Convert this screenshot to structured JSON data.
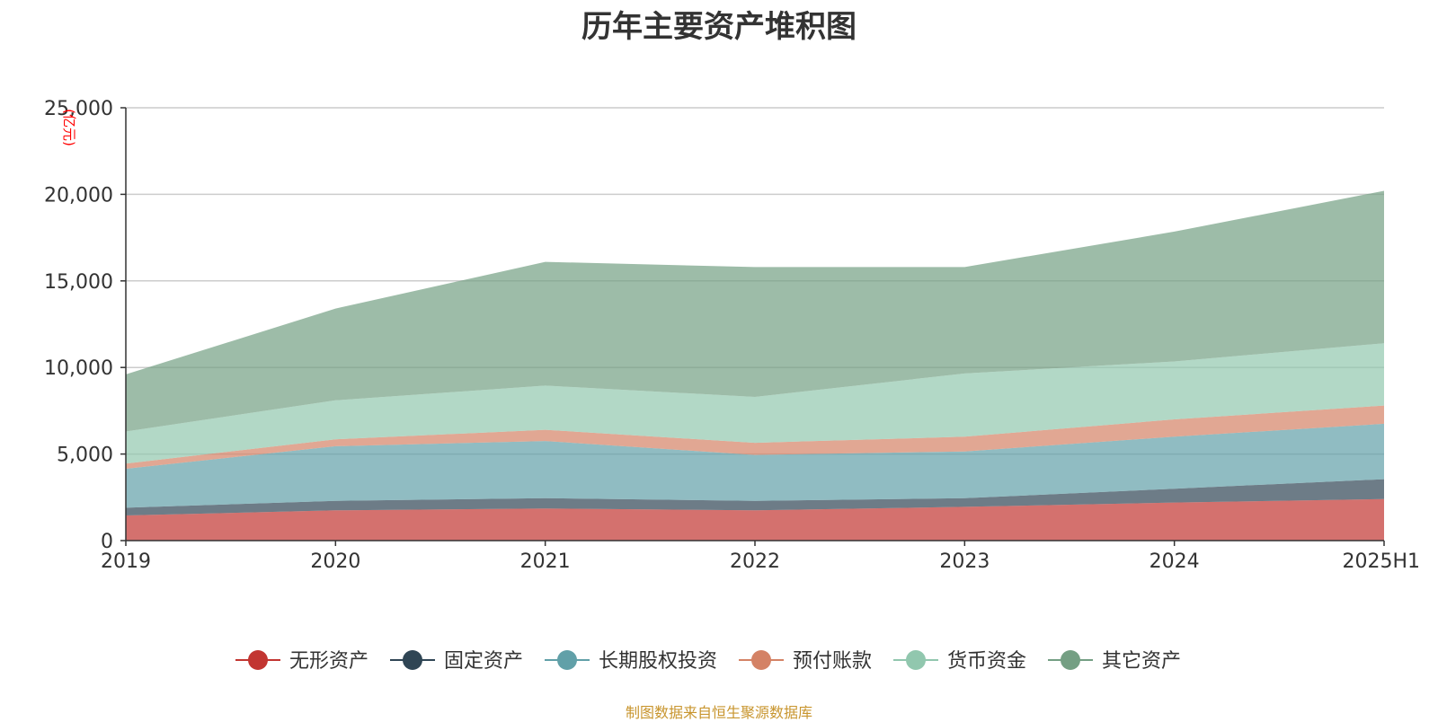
{
  "chart_data": {
    "type": "area",
    "stacked": true,
    "title": "历年主要资产堆积图",
    "ylabel": "(亿元)",
    "xlabel": "",
    "categories": [
      "2019",
      "2020",
      "2021",
      "2022",
      "2023",
      "2024",
      "2025H1"
    ],
    "ylim": [
      0,
      25000
    ],
    "yticks": [
      0,
      5000,
      10000,
      15000,
      20000,
      25000
    ],
    "ytick_labels": [
      "0",
      "5,000",
      "10,000",
      "15,000",
      "20,000",
      "25,000"
    ],
    "grid": true,
    "legend_position": "bottom-center",
    "series": [
      {
        "name": "无形资产",
        "color": "#c23531",
        "values": [
          1450,
          1750,
          1850,
          1750,
          1950,
          2200,
          2400
        ]
      },
      {
        "name": "固定资产",
        "color": "#2f4554",
        "values": [
          450,
          550,
          600,
          550,
          500,
          800,
          1150
        ]
      },
      {
        "name": "长期股权投资",
        "color": "#61a0a8",
        "values": [
          2250,
          3150,
          3300,
          2650,
          2700,
          3000,
          3200
        ]
      },
      {
        "name": "预付账款",
        "color": "#d48265",
        "values": [
          300,
          400,
          650,
          700,
          850,
          1000,
          1050
        ]
      },
      {
        "name": "货币资金",
        "color": "#91c7ae",
        "values": [
          1850,
          2250,
          2550,
          2650,
          3650,
          3350,
          3600
        ]
      },
      {
        "name": "其它资产",
        "color": "#749f83",
        "values": [
          3300,
          5300,
          7150,
          7500,
          6150,
          7500,
          8800
        ]
      }
    ]
  },
  "footer": {
    "source": "制图数据来自恒生聚源数据库"
  }
}
